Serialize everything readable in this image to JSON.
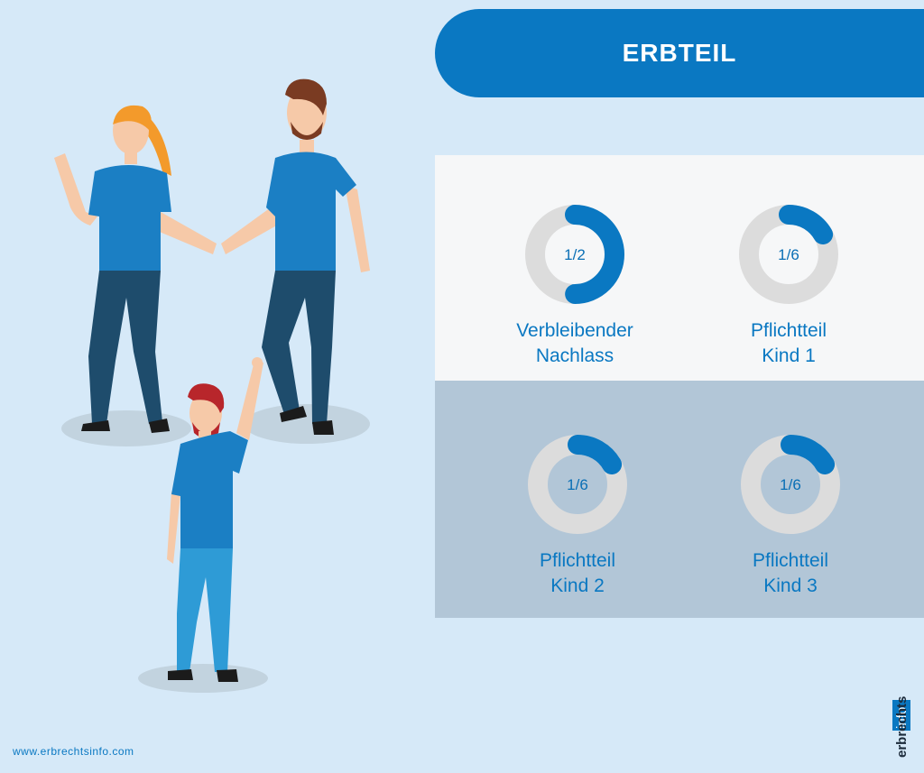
{
  "header": {
    "title": "ERBTEIL"
  },
  "chart_data": {
    "type": "pie",
    "title": "ERBTEIL",
    "slices": [
      {
        "label_line1": "Verbleibender",
        "label_line2": "Nachlass",
        "fraction": 0.5,
        "text": "1/2"
      },
      {
        "label_line1": "Pflichtteil",
        "label_line2": "Kind 1",
        "fraction": 0.1667,
        "text": "1/6"
      },
      {
        "label_line1": "Pflichtteil",
        "label_line2": "Kind 2",
        "fraction": 0.1667,
        "text": "1/6"
      },
      {
        "label_line1": "Pflichtteil",
        "label_line2": "Kind 3",
        "fraction": 0.1667,
        "text": "1/6"
      }
    ]
  },
  "footer": {
    "url": "www.erbrechtsinfo.com",
    "logo_text": "erbrechtsinfo"
  },
  "colors": {
    "accent": "#0a78c2",
    "track": "#dcdcdc",
    "panel_top": "#f6f7f8",
    "panel_bottom": "#b2c6d7"
  }
}
